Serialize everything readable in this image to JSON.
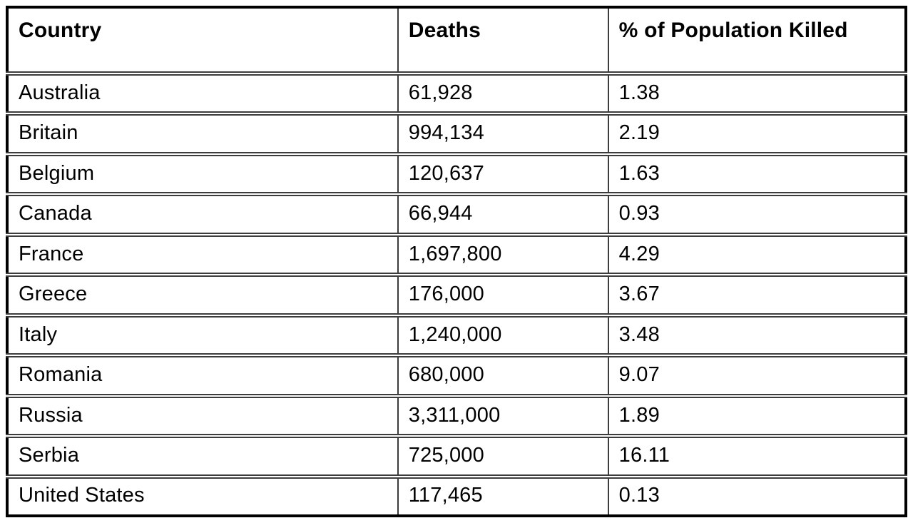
{
  "table": {
    "title": "deaths-by-country-table",
    "columns": [
      "Country",
      "Deaths",
      "% of Population Killed"
    ],
    "rows": [
      {
        "country": "Australia",
        "deaths": "61,928",
        "pct": "1.38"
      },
      {
        "country": "Britain",
        "deaths": "994,134",
        "pct": "2.19"
      },
      {
        "country": "Belgium",
        "deaths": "120,637",
        "pct": "1.63"
      },
      {
        "country": "Canada",
        "deaths": "66,944",
        "pct": "0.93"
      },
      {
        "country": "France",
        "deaths": "1,697,800",
        "pct": "4.29"
      },
      {
        "country": "Greece",
        "deaths": "176,000",
        "pct": "3.67"
      },
      {
        "country": "Italy",
        "deaths": "1,240,000",
        "pct": "3.48"
      },
      {
        "country": "Romania",
        "deaths": "680,000",
        "pct": "9.07"
      },
      {
        "country": "Russia",
        "deaths": "3,311,000",
        "pct": "1.89"
      },
      {
        "country": "Serbia",
        "deaths": "725,000",
        "pct": "16.11"
      },
      {
        "country": "United States",
        "deaths": "117,465",
        "pct": "0.13"
      }
    ]
  },
  "colors": {
    "background": "#ffffff",
    "outer_border": "#000000",
    "inner_border": "#3c3c3c",
    "text": "#000000"
  }
}
